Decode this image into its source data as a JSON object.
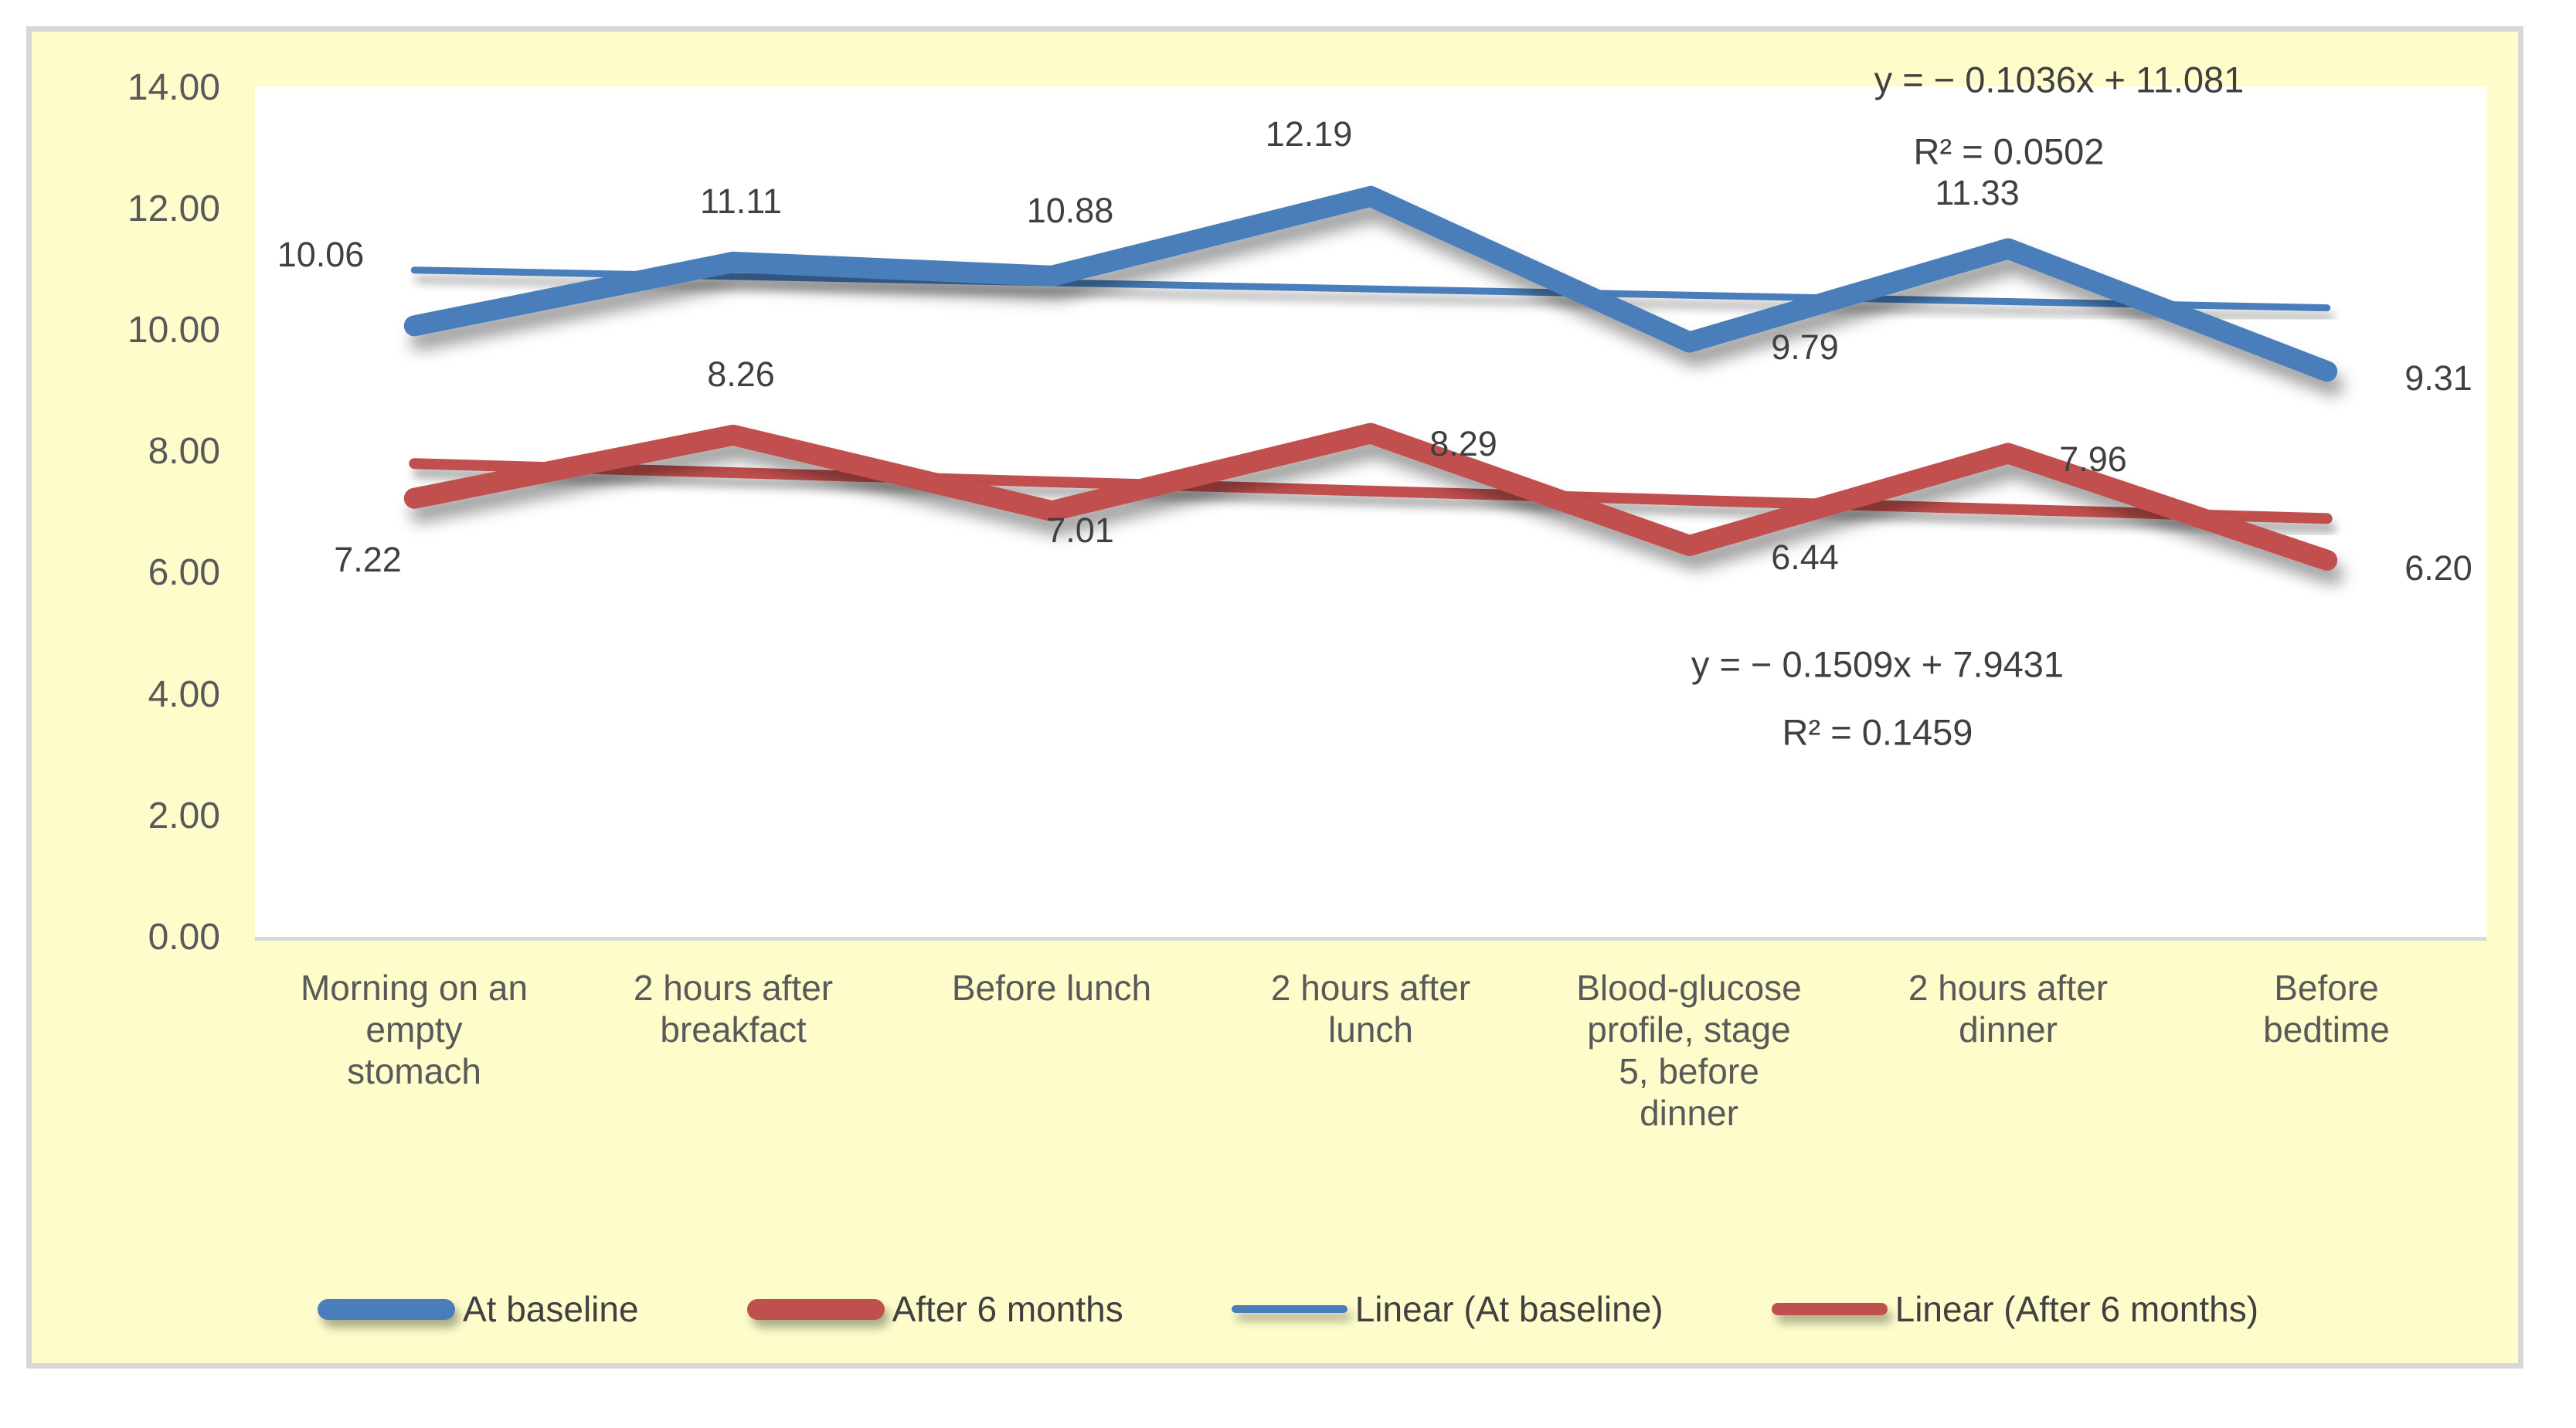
{
  "chart_data": {
    "type": "line",
    "title": "",
    "categories": [
      "Morning on an\nempty\nstomach",
      "2 hours after\nbreakfact",
      "Before lunch",
      "2 hours after\nlunch",
      "Blood-glucose\nprofile, stage\n5, before\ndinner",
      "2 hours after\ndinner",
      "Before\nbedtime"
    ],
    "series": [
      {
        "name": "At baseline",
        "color": "#4a7ebb",
        "values": [
          10.06,
          11.11,
          10.88,
          12.19,
          9.79,
          11.33,
          9.31
        ],
        "labels": [
          "10.06",
          "11.11",
          "10.88",
          "12.19",
          "9.79",
          "11.33",
          "9.31"
        ]
      },
      {
        "name": "After 6 months",
        "color": "#c0504d",
        "values": [
          7.22,
          8.26,
          7.01,
          8.29,
          6.44,
          7.96,
          6.2
        ],
        "labels": [
          "7.22",
          "8.26",
          "7.01",
          "8.29",
          "6.44",
          "7.96",
          "6.20"
        ]
      }
    ],
    "trendlines": [
      {
        "name": "Linear (At baseline)",
        "color": "#4a7ebb",
        "slope": -0.1036,
        "intercept": 11.081,
        "equation": "y = − 0.1036x + 11.081",
        "r2": "R² = 0.0502"
      },
      {
        "name": "Linear (After 6 months)",
        "color": "#c0504d",
        "slope": -0.1509,
        "intercept": 7.9431,
        "equation": "y = − 0.1509x + 7.9431",
        "r2": "R² = 0.1459"
      }
    ],
    "y_axis": {
      "min": 0,
      "max": 14,
      "ticks": [
        "0.00",
        "2.00",
        "4.00",
        "6.00",
        "8.00",
        "10.00",
        "12.00",
        "14.00"
      ]
    },
    "legend": [
      "At baseline",
      "After 6 months",
      "Linear (At baseline)",
      "Linear (After 6 months)"
    ],
    "legend_position": "bottom",
    "grid": false,
    "colors": {
      "background": "#fdfcca",
      "plot_background": "#ffffff",
      "border": "#d8d8d8",
      "axis_text": "#595959",
      "label_text": "#404040"
    }
  }
}
